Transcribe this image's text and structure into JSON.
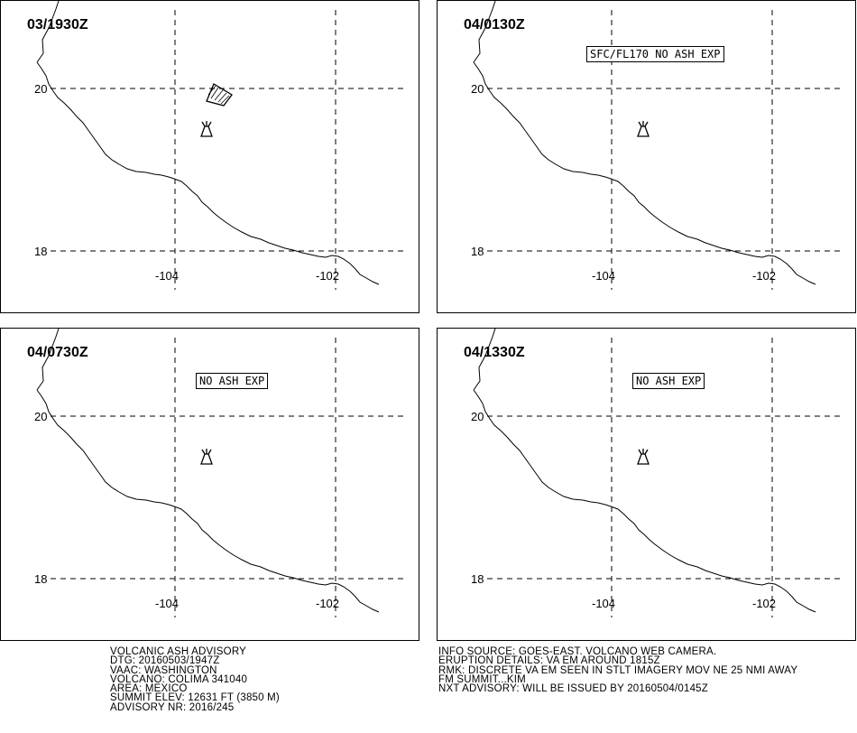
{
  "panels": [
    {
      "time": "03/1930Z",
      "label": "",
      "polygon": true
    },
    {
      "time": "04/0130Z",
      "label": "SFC/FL170 NO ASH EXP",
      "polygon": false
    },
    {
      "time": "04/0730Z",
      "label": "NO ASH EXP",
      "polygon": false
    },
    {
      "time": "04/1330Z",
      "label": "NO ASH EXP",
      "polygon": false
    }
  ],
  "axes": {
    "lat_labels": [
      "20",
      "18"
    ],
    "lon_labels": [
      "-104",
      "-102"
    ]
  },
  "symbols": {
    "volcano": "volcano-icon"
  },
  "advisory_left": [
    "VOLCANIC ASH ADVISORY",
    "DTG: 20160503/1947Z",
    "VAAC: WASHINGTON",
    "VOLCANO: COLIMA 341040",
    "AREA: MEXICO",
    "SUMMIT ELEV: 12631 FT (3850 M)",
    "ADVISORY NR: 2016/245"
  ],
  "advisory_right": [
    "INFO SOURCE: GOES-EAST. VOLCANO WEB CAMERA.",
    "ERUPTION DETAILS: VA EM AROUND 1815Z",
    "RMK: DISCRETE VA EM SEEN IN STLT IMAGERY MOV NE 25 NMI AWAY",
    "FM SUMMIT...KIM",
    "NXT ADVISORY: WILL BE ISSUED BY 20160504/0145Z"
  ]
}
